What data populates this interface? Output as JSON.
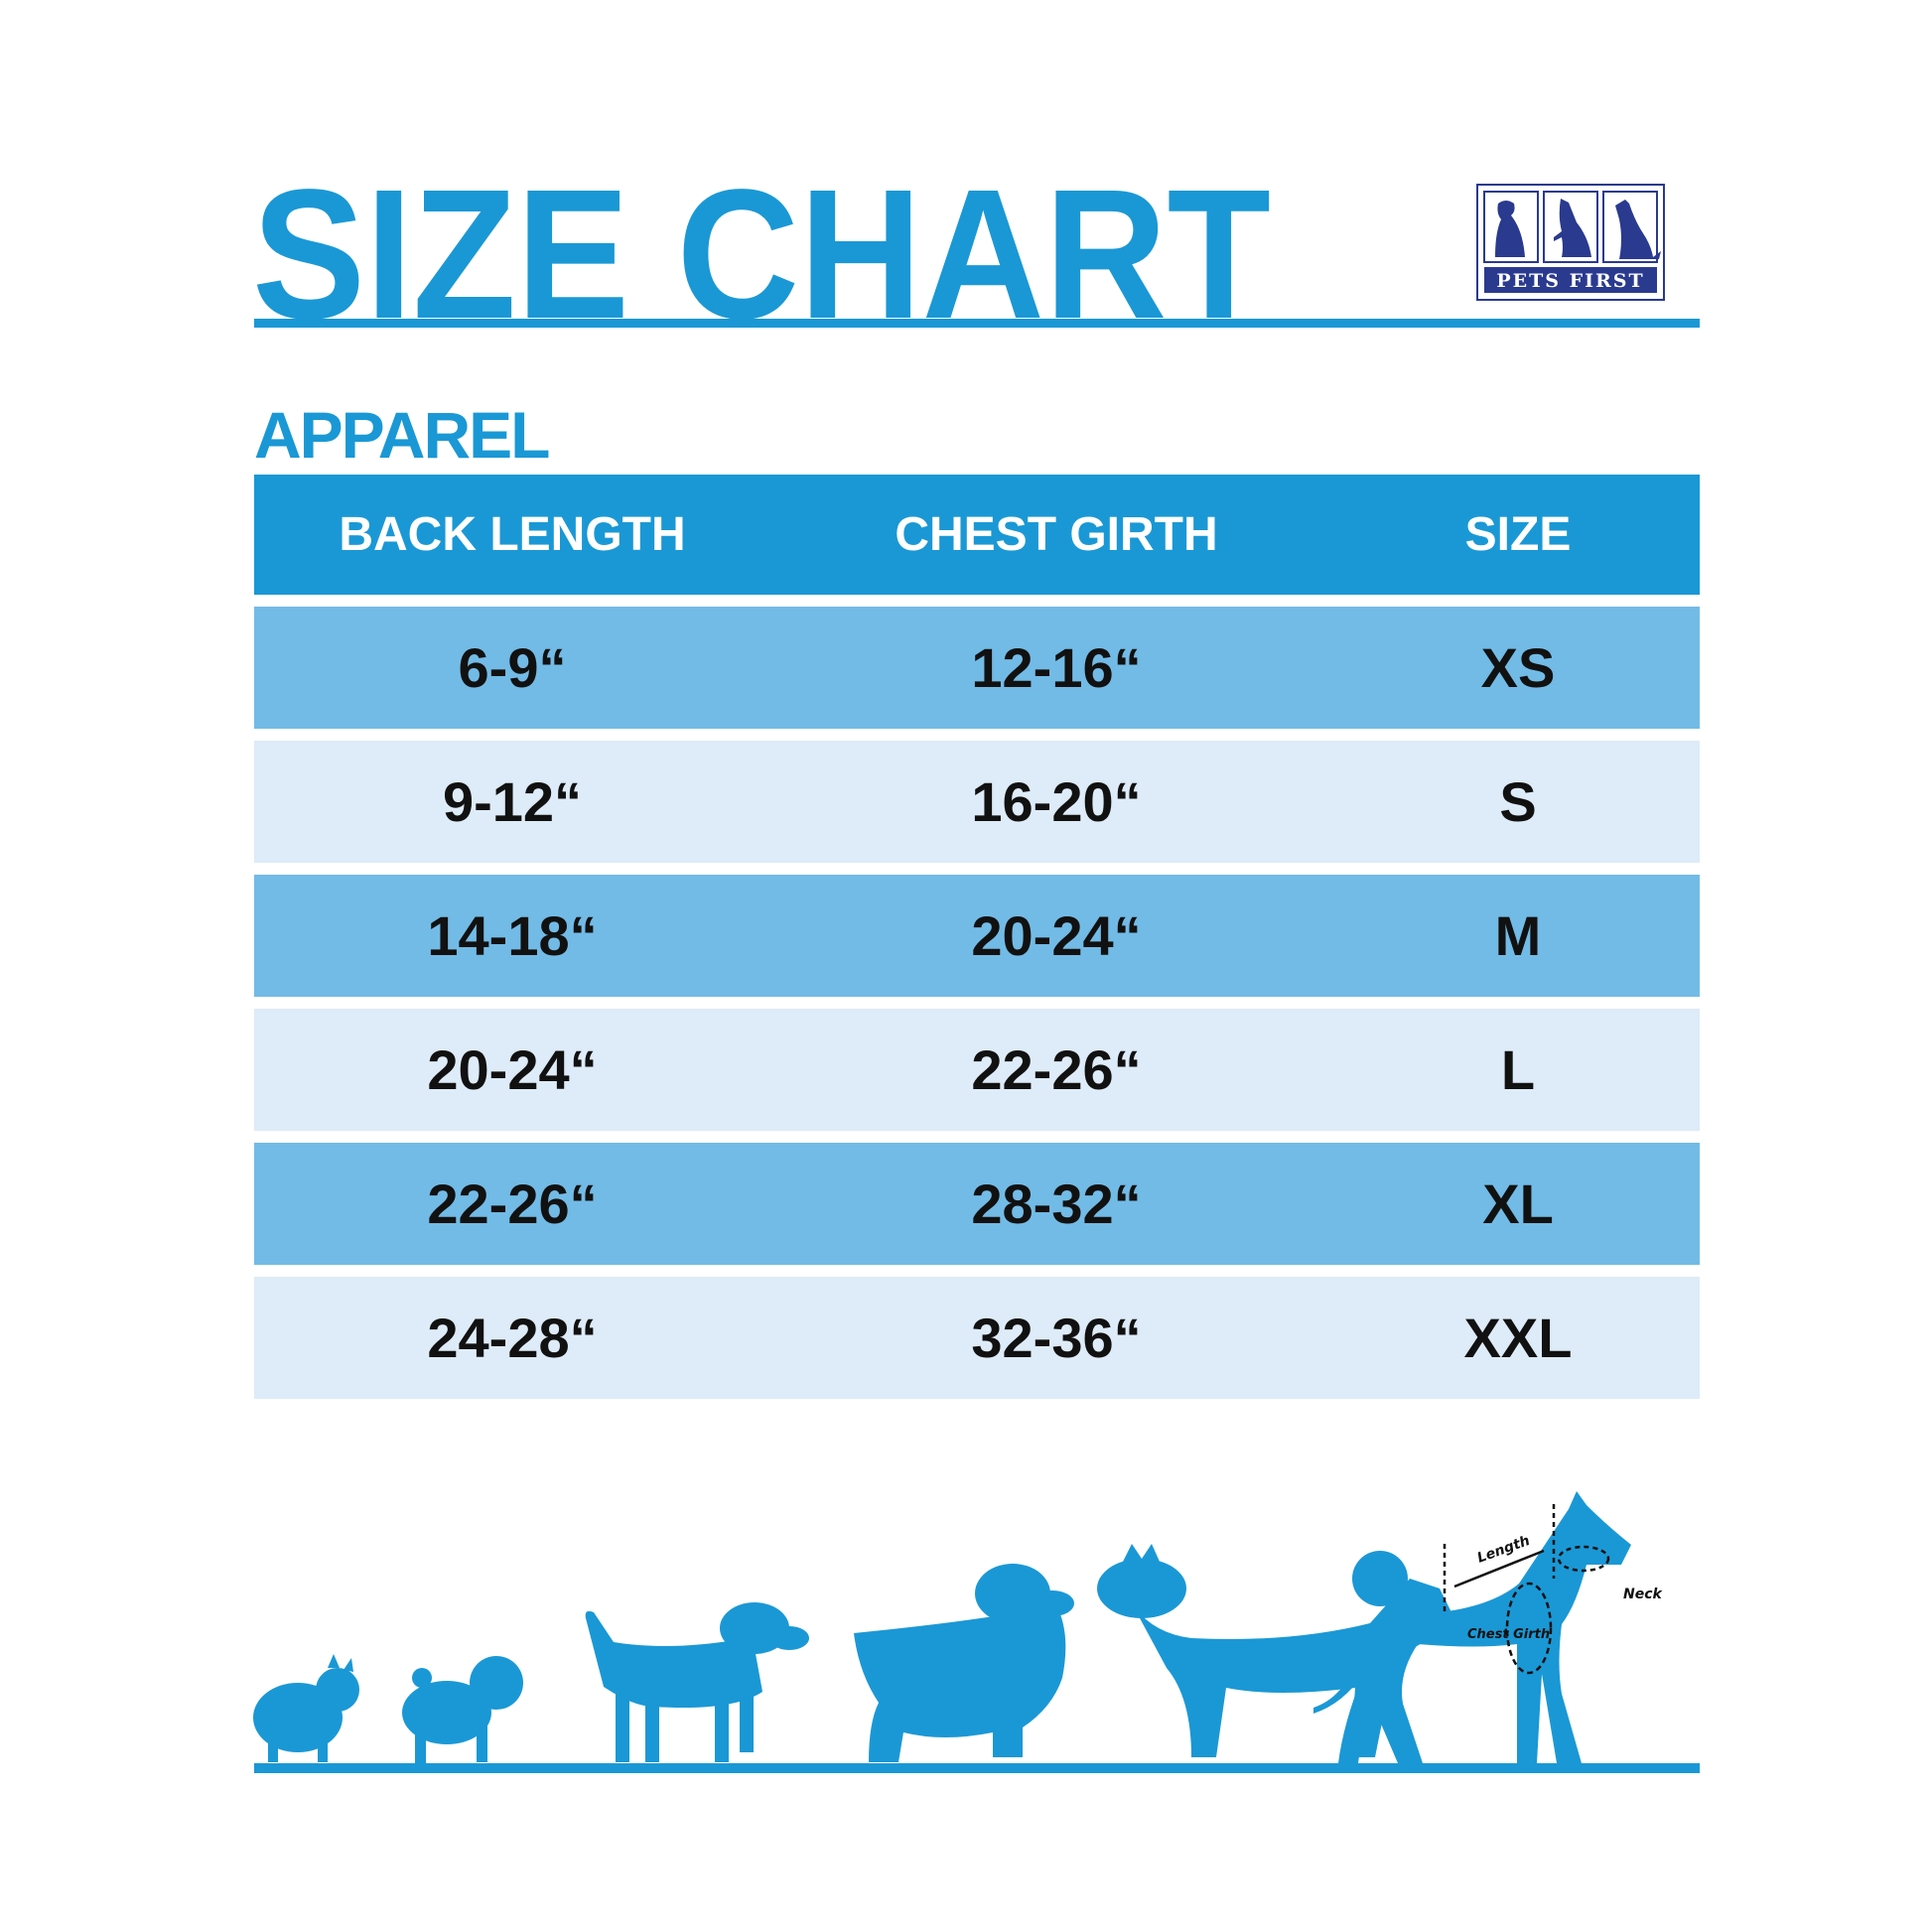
{
  "title": "SIZE CHART",
  "brand": {
    "logo_text": "PETS FIRST",
    "color": "#2a3a8f"
  },
  "section": "APPAREL",
  "colors": {
    "accent": "#1a98d5",
    "row_dark": "#72bbe6",
    "row_light": "#deebf8"
  },
  "table": {
    "headers": [
      "BACK LENGTH",
      "CHEST GIRTH",
      "SIZE"
    ],
    "rows": [
      [
        "6-9“",
        "12-16“",
        "XS"
      ],
      [
        "9-12“",
        "16-20“",
        "S"
      ],
      [
        "14-18“",
        "20-24“",
        "M"
      ],
      [
        "20-24“",
        "22-26“",
        "L"
      ],
      [
        "22-26“",
        "28-32“",
        "XL"
      ],
      [
        "24-28“",
        "32-36“",
        "XXL"
      ]
    ]
  },
  "diagram": {
    "length_label": "Length",
    "chest_label": "Chest Girth",
    "neck_label": "Neck"
  }
}
